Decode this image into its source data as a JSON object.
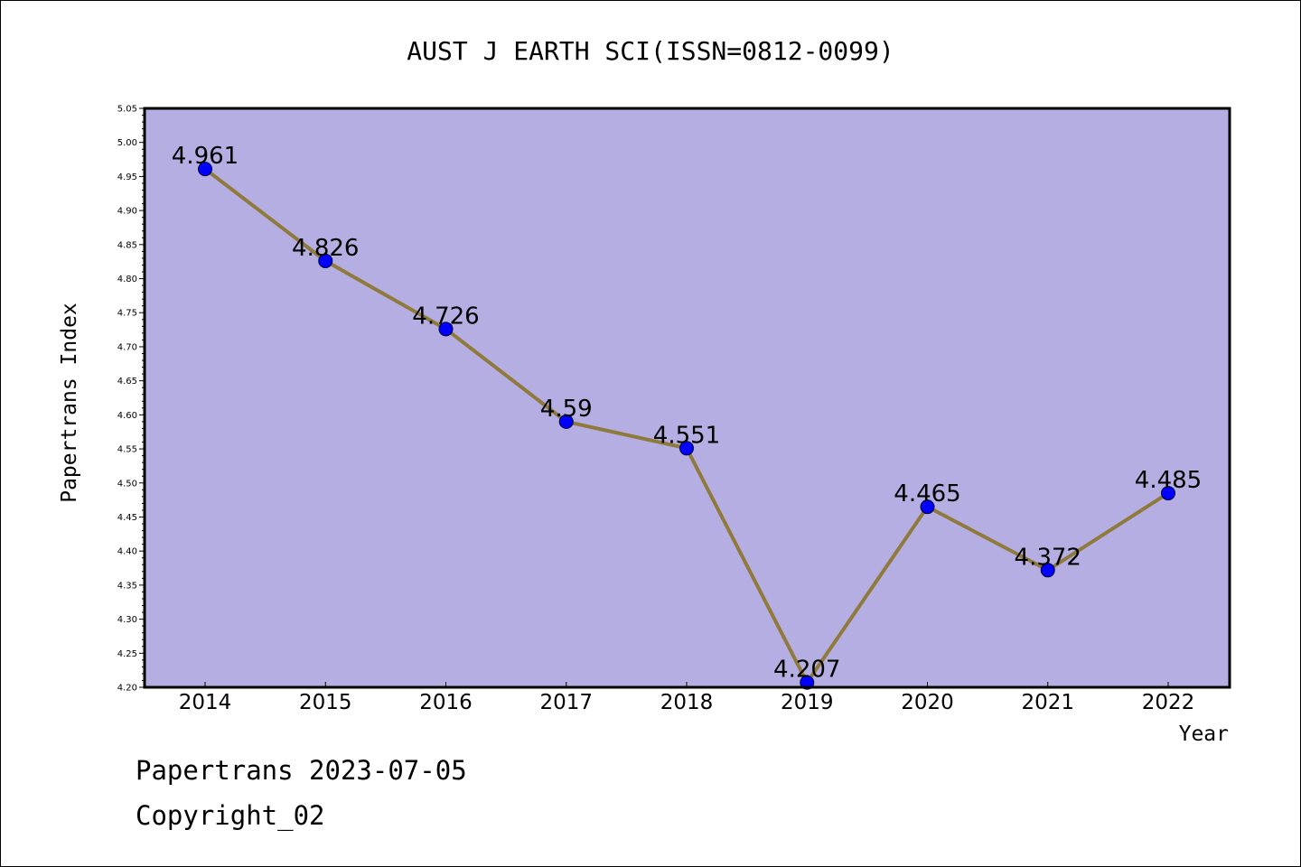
{
  "chart_data": {
    "type": "line",
    "title": "AUST J EARTH SCI(ISSN=0812-0099)",
    "xlabel": "Year",
    "ylabel": "Papertrans Index",
    "categories": [
      "2014",
      "2015",
      "2016",
      "2017",
      "2018",
      "2019",
      "2020",
      "2021",
      "2022"
    ],
    "values": [
      4.961,
      4.826,
      4.726,
      4.59,
      4.551,
      4.207,
      4.465,
      4.372,
      4.485
    ],
    "data_labels": [
      "4.961",
      "4.826",
      "4.726",
      "4.59",
      "4.551",
      "4.207",
      "4.465",
      "4.372",
      "4.485"
    ],
    "ylim": [
      4.2,
      5.05
    ],
    "yticks": [
      "4.20",
      "4.25",
      "4.30",
      "4.35",
      "4.40",
      "4.45",
      "4.50",
      "4.55",
      "4.60",
      "4.65",
      "4.70",
      "4.75",
      "4.80",
      "4.85",
      "4.90",
      "4.95",
      "5.00",
      "5.05"
    ],
    "grid": false,
    "legend": "none",
    "colors": {
      "plot_background": "#b4aee2",
      "line": "#8f7a3c",
      "marker": "#0000ff",
      "axis": "#000000"
    }
  },
  "footer": {
    "date_line": "Papertrans 2023-07-05",
    "copyright_line": "Copyright_02"
  }
}
